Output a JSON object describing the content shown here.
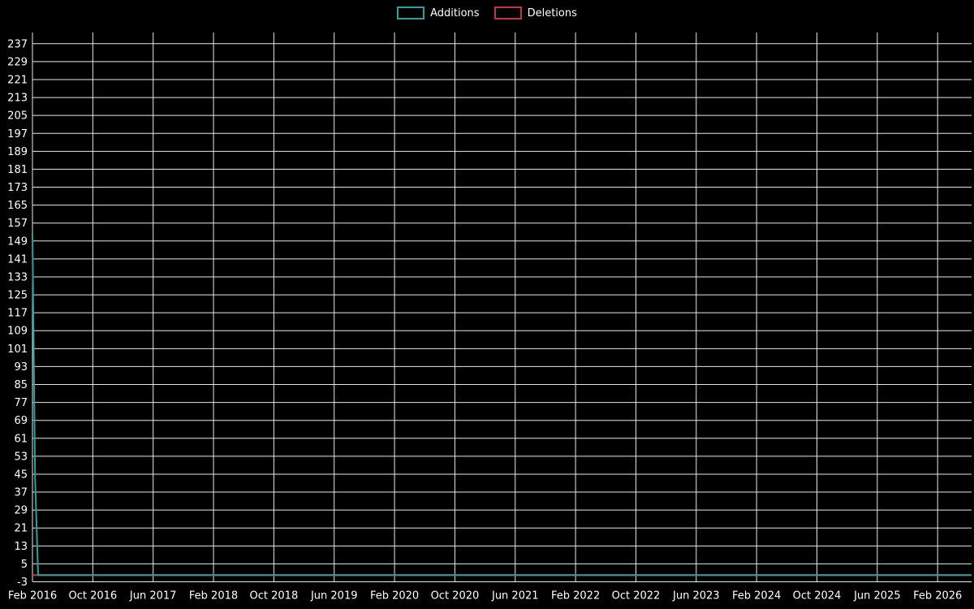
{
  "legend": {
    "items": [
      {
        "label": "Additions",
        "color": "#2f9e9e"
      },
      {
        "label": "Deletions",
        "color": "#c9314b"
      }
    ]
  },
  "chart_data": {
    "type": "line",
    "title": "",
    "xlabel": "",
    "ylabel": "",
    "background": "#000000",
    "grid_color": "#e8e8e8",
    "text_color": "#ffffff",
    "grid": true,
    "legend_position": "top-center",
    "xlim": [
      0,
      124.5
    ],
    "ylim": [
      -3,
      242
    ],
    "x_tick_months": [
      0,
      8,
      16,
      24,
      32,
      40,
      48,
      56,
      64,
      72,
      80,
      88,
      96,
      104,
      112,
      120
    ],
    "x_tick_labels": [
      "Feb 2016",
      "Oct 2016",
      "Jun 2017",
      "Feb 2018",
      "Oct 2018",
      "Jun 2019",
      "Feb 2020",
      "Oct 2020",
      "Jun 2021",
      "Feb 2022",
      "Oct 2022",
      "Jun 2023",
      "Feb 2024",
      "Oct 2024",
      "Jun 2025",
      "Feb 2026"
    ],
    "y_ticks": [
      -3,
      5,
      13,
      21,
      29,
      37,
      45,
      53,
      61,
      69,
      77,
      85,
      93,
      101,
      109,
      117,
      125,
      133,
      141,
      149,
      157,
      165,
      173,
      181,
      189,
      197,
      205,
      213,
      221,
      229,
      237
    ],
    "series": [
      {
        "name": "Additions",
        "color": "#2f9e9e",
        "points": [
          [
            0,
            152
          ],
          [
            0.35,
            43
          ],
          [
            0.75,
            0
          ],
          [
            124.5,
            0
          ]
        ]
      },
      {
        "name": "Deletions",
        "color": "#c9314b",
        "points": [
          [
            0,
            0
          ],
          [
            124.5,
            0
          ]
        ]
      }
    ]
  }
}
